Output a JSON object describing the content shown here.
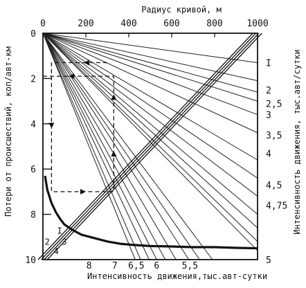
{
  "chart_data": {
    "type": "line",
    "title": "",
    "top_axis": {
      "label": "Радиус кривой, м",
      "range": [
        0,
        1000
      ],
      "ticks": [
        "0",
        "200",
        "400",
        "600",
        "800",
        "1000"
      ]
    },
    "left_axis": {
      "label": "Потери от происшествий, коп/авт-км",
      "range": [
        0,
        10
      ],
      "ticks": [
        "0",
        "2",
        "4",
        "6",
        "8",
        "10"
      ]
    },
    "right_axis": {
      "label": "Интенсивность движения, тыс.авт/сутки",
      "ticks": [
        "I",
        "2",
        "2,5",
        "3",
        "3,5",
        "4",
        "4,5",
        "4,75",
        "5"
      ]
    },
    "bottom_axis": {
      "label": "Интенсивность движения,тыс.авт-сутки",
      "ticks": [
        "8",
        "7",
        "6,5",
        "6",
        "5,5"
      ]
    },
    "loss_curve": {
      "name": "Потери от происшествий",
      "x_radius_m": [
        10,
        20,
        40,
        60,
        80,
        100,
        140,
        180,
        220,
        260,
        300,
        360,
        420,
        500,
        600,
        700,
        800,
        900,
        1000
      ],
      "y_loss": [
        6.3,
        6.9,
        7.5,
        7.9,
        8.2,
        8.45,
        8.7,
        8.9,
        9.0,
        9.1,
        9.2,
        9.3,
        9.35,
        9.4,
        9.42,
        9.45,
        9.45,
        9.48,
        9.5
      ]
    },
    "fan_lines": {
      "name": "Интенсивность движения",
      "origin": [
        0,
        0
      ],
      "right_edge_losses": [
        1.3,
        2.1,
        2.6,
        3.0,
        3.6,
        4.4,
        5.6,
        6.4,
        7.2,
        8.0,
        8.6,
        9.2,
        9.6
      ],
      "bottom_edge_radii": [
        430,
        455,
        495,
        530,
        570,
        620,
        680,
        730,
        790
      ]
    },
    "diagonal_lines": {
      "labels": [
        "I",
        "2",
        "3",
        "4"
      ],
      "offsets_m": [
        -22,
        -8,
        6,
        20
      ]
    },
    "example_path": {
      "points_radius_m": [
        300,
        40,
        40,
        330,
        330,
        0
      ],
      "points_loss": [
        1.3,
        1.3,
        7.0,
        7.0,
        1.9,
        1.9
      ]
    }
  }
}
